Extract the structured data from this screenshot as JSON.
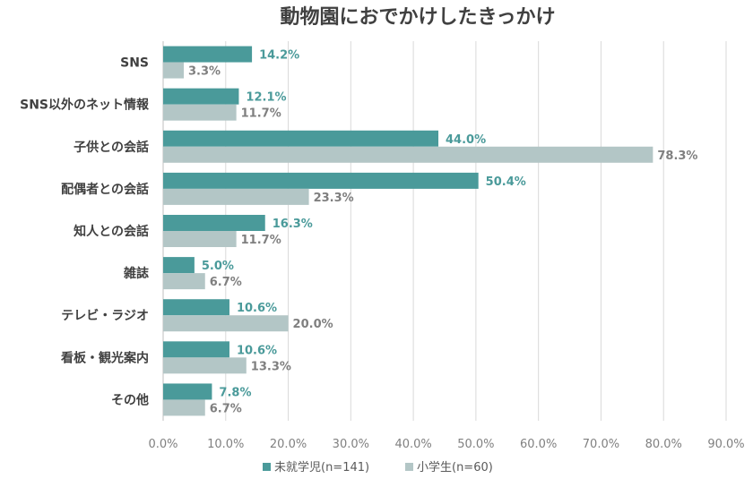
{
  "chart_data": {
    "type": "bar",
    "orientation": "horizontal",
    "title": "動物園におでかけしたきっかけ",
    "categories": [
      "SNS",
      "SNS以外のネット情報",
      "子供との会話",
      "配偶者との会話",
      "知人との会話",
      "雑誌",
      "テレビ・ラジオ",
      "看板・観光案内",
      "その他"
    ],
    "series": [
      {
        "name": "未就学児(n=141)",
        "color": "#4a9a9a",
        "label_color": "#4a9a9a",
        "values": [
          14.2,
          12.1,
          44.0,
          50.4,
          16.3,
          5.0,
          10.6,
          10.6,
          7.8
        ],
        "labels": [
          "14.2%",
          "12.1%",
          "44.0%",
          "50.4%",
          "16.3%",
          "5.0%",
          "10.6%",
          "10.6%",
          "7.8%"
        ]
      },
      {
        "name": "小学生(n=60)",
        "color": "#b3c6c6",
        "label_color": "#7f7f7f",
        "values": [
          3.3,
          11.7,
          78.3,
          23.3,
          11.7,
          6.7,
          20.0,
          13.3,
          6.7
        ],
        "labels": [
          "3.3%",
          "11.7%",
          "78.3%",
          "23.3%",
          "11.7%",
          "6.7%",
          "20.0%",
          "13.3%",
          "6.7%"
        ]
      }
    ],
    "xlim": [
      0,
      90
    ],
    "xticks": [
      0,
      10,
      20,
      30,
      40,
      50,
      60,
      70,
      80,
      90
    ],
    "xtick_labels": [
      "0.0%",
      "10.0%",
      "20.0%",
      "30.0%",
      "40.0%",
      "50.0%",
      "60.0%",
      "70.0%",
      "80.0%",
      "90.0%"
    ],
    "grid": true,
    "legend_position": "bottom"
  }
}
